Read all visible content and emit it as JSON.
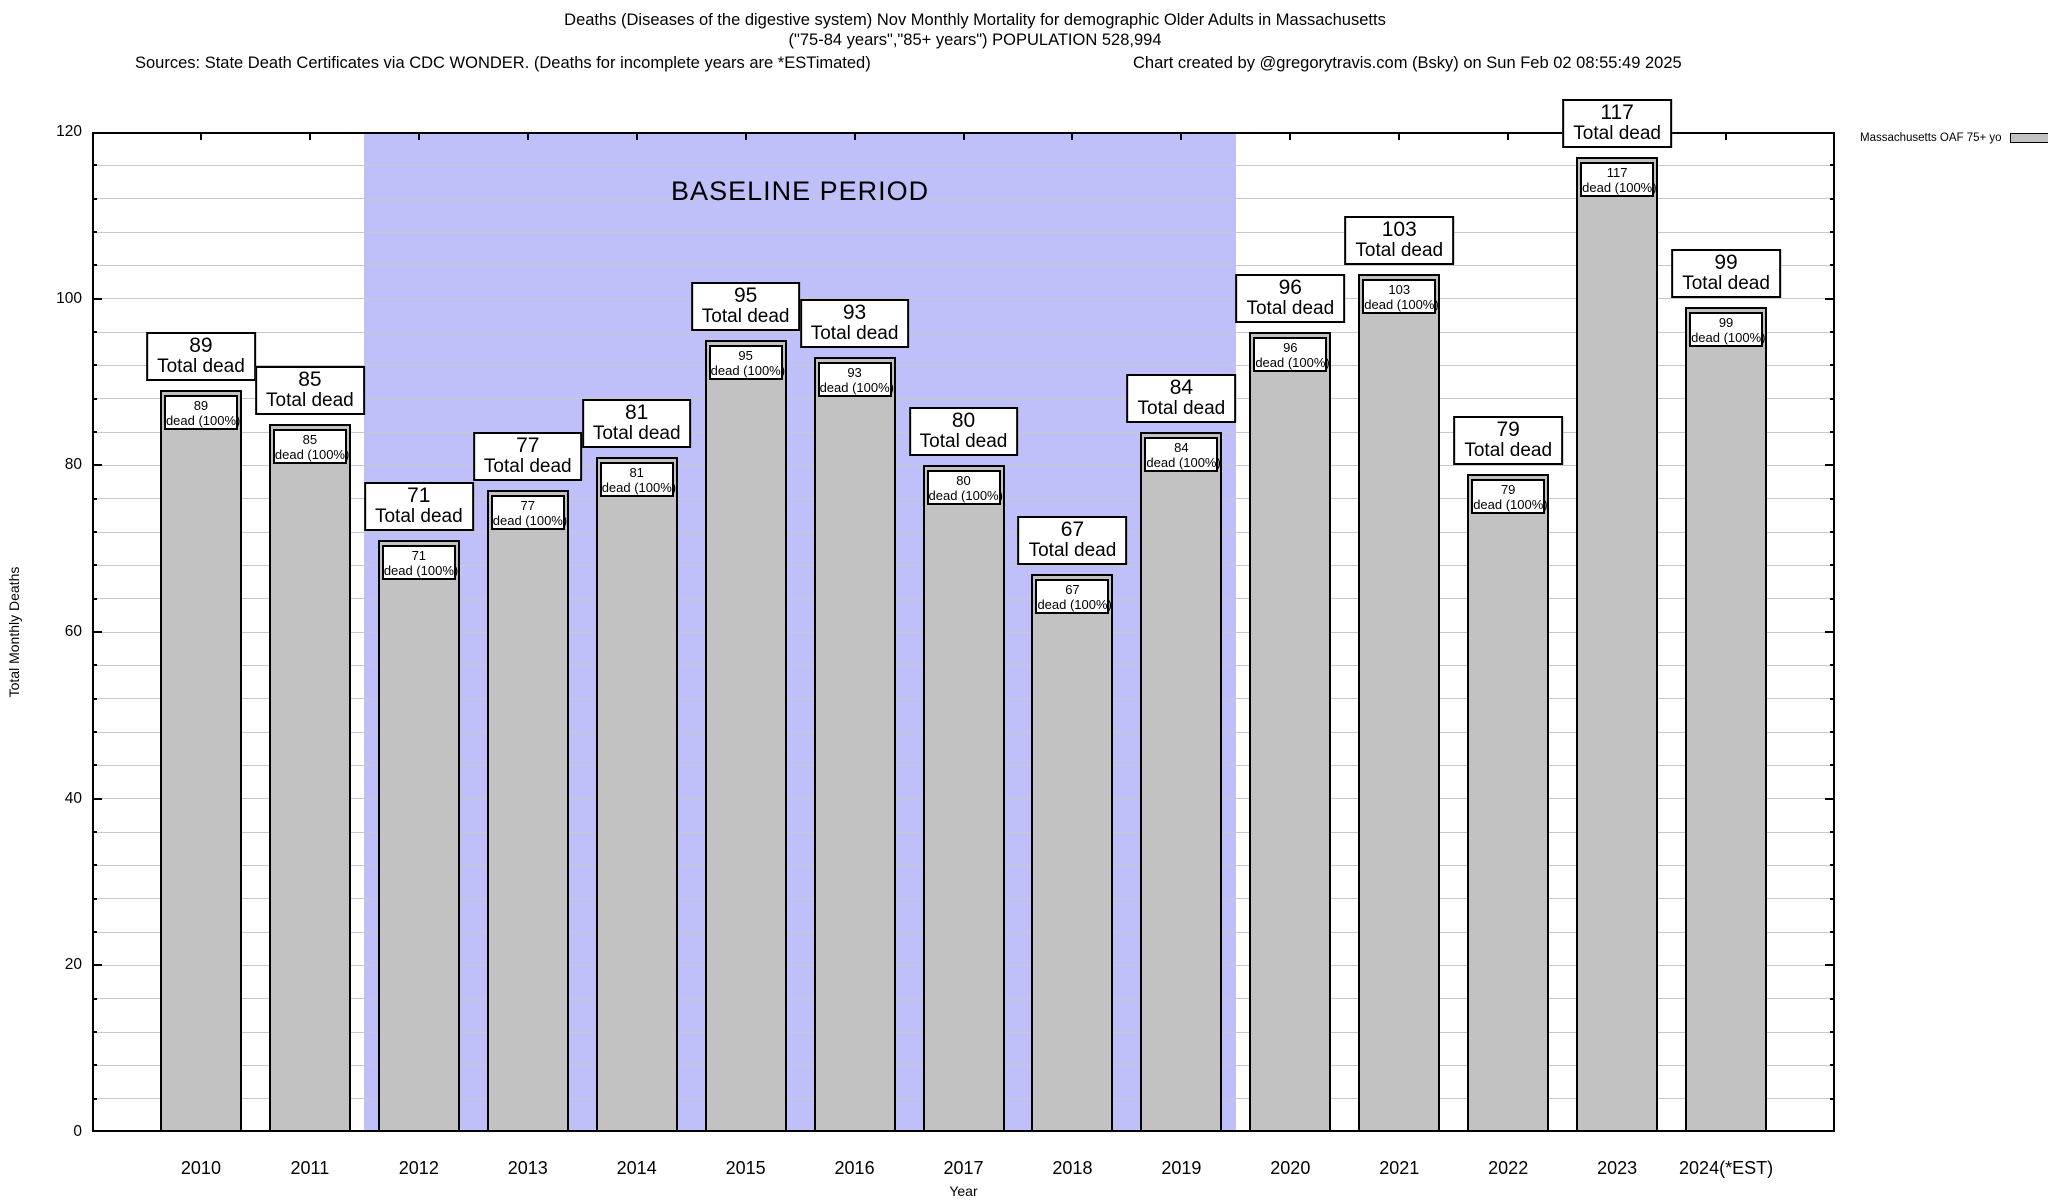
{
  "header": {
    "title_line1": "Deaths (Diseases of the digestive system) Nov Monthly Mortality for demographic Older Adults in Massachusetts",
    "title_line2": "(\"75-84 years\",\"85+ years\") POPULATION 528,994",
    "sources_note": "Sources: State Death Certificates via CDC WONDER. (Deaths for incomplete years are *ESTimated)",
    "credit_note": "Chart created by @gregorytravis.com (Bsky) on Sun Feb 02 08:55:49 2025"
  },
  "legend": {
    "label": "Massachusetts OAF 75+ yo"
  },
  "chart_data": {
    "type": "bar",
    "title": "Deaths (Diseases of the digestive system) Nov Monthly Mortality for demographic Older Adults in Massachusetts (\"75-84 years\",\"85+ years\") POPULATION 528,994",
    "categories": [
      "2010",
      "2011",
      "2012",
      "2013",
      "2014",
      "2015",
      "2016",
      "2017",
      "2018",
      "2019",
      "2020",
      "2021",
      "2022",
      "2023",
      "2024(*EST)"
    ],
    "values": [
      89,
      85,
      71,
      77,
      81,
      95,
      93,
      80,
      67,
      84,
      96,
      103,
      79,
      117,
      99
    ],
    "bar_top_label_suffix": "Total dead",
    "bar_inner_label_suffix": "dead (100%)",
    "xlabel": "Year",
    "ylabel": "Total Monthly Deaths",
    "ylim": [
      0,
      120
    ],
    "y_major_ticks": [
      0,
      20,
      40,
      60,
      80,
      100,
      120
    ],
    "y_minor_step": 4,
    "grid": true,
    "legend": {
      "label": "Massachusetts OAF 75+ yo",
      "position": "top-right"
    },
    "baseline_band": {
      "label": "BASELINE PERIOD",
      "from_category": "2012",
      "to_category": "2019"
    },
    "colors": {
      "bar_fill": "#c2c2c2",
      "bar_border": "#000000",
      "baseline_fill": "#bfbffa",
      "grid": "#c9c9c9"
    }
  }
}
